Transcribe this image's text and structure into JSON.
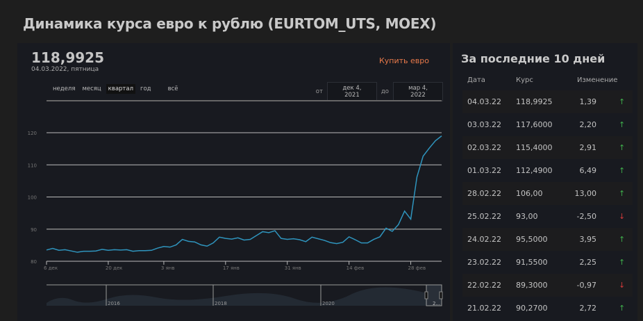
{
  "title": "Динамика курса евро к рублю (EURTOM_UTS, MOEX)",
  "price": "118,9925",
  "price_date": "04.03.2022, пятница",
  "buy_label": "Купить евро",
  "periods": [
    "неделя",
    "месяц",
    "квартал",
    "год",
    "всё"
  ],
  "active_period": "квартал",
  "range": {
    "from_label": "от",
    "from": "дек 4, 2021",
    "to_label": "до",
    "to": "мар 4, 2022"
  },
  "colors": {
    "line": "#2f95be",
    "accent": "#e8794a",
    "up": "#3fae4c",
    "down": "#d23a3a"
  },
  "chart_data": {
    "type": "line",
    "ylim": [
      80,
      120
    ],
    "y_ticks": [
      "80",
      "90",
      "100",
      "110",
      "120"
    ],
    "x_ticks": [
      "6 дек",
      "20 дек",
      "3 янв",
      "17 янв",
      "31 янв",
      "14 фев",
      "28 фев"
    ],
    "values": [
      83.5,
      84.0,
      83.4,
      83.6,
      83.2,
      82.8,
      83.1,
      83.1,
      83.2,
      83.7,
      83.4,
      83.6,
      83.5,
      83.6,
      83.1,
      83.3,
      83.3,
      83.4,
      84.1,
      84.6,
      84.4,
      85.1,
      86.8,
      86.2,
      86.0,
      85.1,
      84.7,
      85.7,
      87.5,
      87.1,
      86.9,
      87.3,
      86.6,
      86.8,
      88.0,
      89.2,
      88.9,
      89.5,
      87.1,
      86.8,
      87.0,
      86.7,
      86.1,
      87.5,
      87.0,
      86.5,
      85.8,
      85.5,
      85.9,
      87.6,
      86.7,
      85.7,
      85.7,
      86.8,
      87.6,
      90.3,
      89.3,
      91.4,
      95.6,
      93.1,
      106.2,
      112.7,
      115.2,
      117.5,
      119.0
    ],
    "navigator_labels": [
      "2016",
      "2018",
      "2020",
      "2..."
    ]
  },
  "table": {
    "title": "За последние 10 дней",
    "headers": [
      "Дата",
      "Курс",
      "Изменение"
    ],
    "rows": [
      {
        "date": "04.03.22",
        "rate": "118,9925",
        "change": "1,39",
        "dir": "up"
      },
      {
        "date": "03.03.22",
        "rate": "117,6000",
        "change": "2,20",
        "dir": "up"
      },
      {
        "date": "02.03.22",
        "rate": "115,4000",
        "change": "2,91",
        "dir": "up"
      },
      {
        "date": "01.03.22",
        "rate": "112,4900",
        "change": "6,49",
        "dir": "up"
      },
      {
        "date": "28.02.22",
        "rate": "106,00",
        "change": "13,00",
        "dir": "up"
      },
      {
        "date": "25.02.22",
        "rate": "93,00",
        "change": "-2,50",
        "dir": "down"
      },
      {
        "date": "24.02.22",
        "rate": "95,5000",
        "change": "3,95",
        "dir": "up"
      },
      {
        "date": "23.02.22",
        "rate": "91,5500",
        "change": "2,25",
        "dir": "up"
      },
      {
        "date": "22.02.22",
        "rate": "89,3000",
        "change": "-0,97",
        "dir": "down"
      },
      {
        "date": "21.02.22",
        "rate": "90,2700",
        "change": "2,72",
        "dir": "up"
      }
    ]
  }
}
